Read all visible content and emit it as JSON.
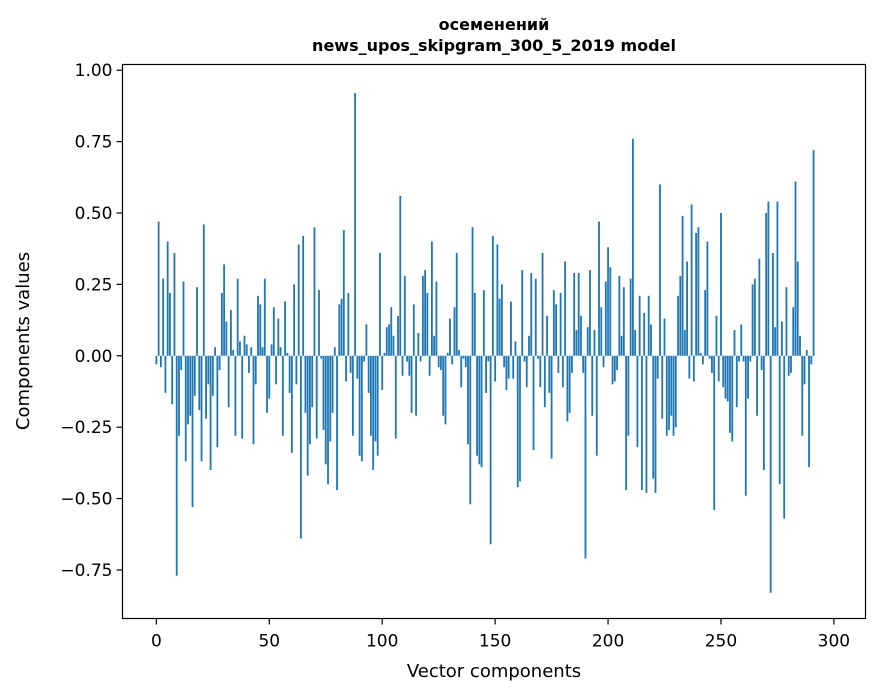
{
  "chart_data": {
    "type": "bar",
    "title": "осеменений",
    "subtitle": "news_upos_skipgram_300_5_2019 model",
    "xlabel": "Vector components",
    "ylabel": "Components values",
    "xlim": [
      -15,
      314
    ],
    "ylim": [
      -0.92,
      1.02
    ],
    "xticks": [
      0,
      50,
      100,
      150,
      200,
      250,
      300
    ],
    "yticks": [
      -0.75,
      -0.5,
      -0.25,
      0.0,
      0.25,
      0.5,
      0.75,
      1.0
    ],
    "ytick_labels": [
      "−0.75",
      "−0.50",
      "−0.25",
      "0.00",
      "0.25",
      "0.50",
      "0.75",
      "1.00"
    ],
    "bar_color": "#1f77b4",
    "grid": false,
    "values": [
      -0.03,
      0.47,
      -0.04,
      0.27,
      -0.13,
      0.4,
      0.22,
      -0.17,
      0.36,
      -0.77,
      -0.28,
      -0.05,
      0.26,
      -0.37,
      -0.24,
      -0.21,
      -0.53,
      -0.14,
      0.24,
      -0.19,
      -0.37,
      0.46,
      -0.22,
      -0.1,
      -0.4,
      -0.14,
      0.03,
      -0.32,
      -0.05,
      0.22,
      0.32,
      0.12,
      -0.18,
      0.16,
      0.02,
      -0.28,
      0.27,
      0.05,
      -0.29,
      0.07,
      0.04,
      -0.06,
      0.03,
      -0.31,
      -0.1,
      0.21,
      0.18,
      0.03,
      0.27,
      -0.2,
      -0.15,
      0.04,
      0.17,
      -0.1,
      0.13,
      0.03,
      -0.28,
      0.19,
      0.01,
      -0.13,
      -0.34,
      0.25,
      -0.1,
      0.39,
      -0.64,
      0.42,
      -0.2,
      -0.42,
      -0.31,
      -0.18,
      0.45,
      -0.29,
      0.23,
      -0.01,
      -0.26,
      -0.38,
      -0.45,
      -0.3,
      -0.2,
      0.03,
      -0.47,
      0.18,
      0.2,
      0.44,
      -0.09,
      0.22,
      -0.06,
      -0.28,
      0.92,
      -0.08,
      -0.35,
      -0.37,
      -0.02,
      0.11,
      -0.13,
      -0.28,
      -0.4,
      -0.3,
      -0.35,
      0.36,
      -0.12,
      0.01,
      0.1,
      0.11,
      0.17,
      0.07,
      -0.29,
      0.14,
      0.56,
      -0.07,
      0.28,
      -0.02,
      -0.07,
      -0.2,
      0.18,
      -0.21,
      0.08,
      -0.02,
      0.28,
      0.3,
      0.22,
      -0.07,
      0.4,
      0.07,
      0.26,
      -0.04,
      -0.05,
      -0.21,
      -0.24,
      0.01,
      0.13,
      -0.03,
      0.17,
      0.36,
      0.02,
      -0.11,
      -0.01,
      -0.04,
      -0.31,
      -0.52,
      0.45,
      0.22,
      -0.35,
      -0.38,
      -0.39,
      0.23,
      -0.13,
      -0.02,
      -0.66,
      0.42,
      -0.09,
      0.39,
      0.2,
      0.25,
      -0.04,
      -0.12,
      -0.08,
      0.19,
      -0.08,
      0.05,
      -0.46,
      -0.44,
      0.3,
      -0.02,
      -0.11,
      0.07,
      0.29,
      -0.33,
      0.27,
      -0.01,
      -0.11,
      0.36,
      -0.18,
      0.14,
      -0.13,
      -0.36,
      0.23,
      0.18,
      -0.06,
      0.22,
      -0.11,
      0.33,
      -0.23,
      -0.2,
      -0.06,
      0.29,
      0.09,
      0.29,
      0.14,
      -0.06,
      -0.71,
      0.1,
      0.3,
      -0.21,
      0.09,
      -0.35,
      0.47,
      0.17,
      -0.04,
      0.26,
      0.38,
      0.31,
      -0.1,
      -0.09,
      -0.05,
      0.28,
      0.07,
      0.24,
      -0.47,
      -0.28,
      0.27,
      0.76,
      0.09,
      -0.32,
      0.21,
      -0.47,
      0.15,
      -0.48,
      0.21,
      0.11,
      -0.43,
      -0.48,
      -0.08,
      0.6,
      -0.22,
      0.13,
      -0.28,
      -0.26,
      -0.21,
      -0.28,
      -0.25,
      0.21,
      0.28,
      0.49,
      0.09,
      0.33,
      -0.08,
      0.53,
      -0.09,
      0.43,
      0.45,
      0.01,
      -0.03,
      0.23,
      0.4,
      -0.01,
      -0.06,
      -0.54,
      0.14,
      -0.09,
      0.5,
      -0.11,
      -0.15,
      -0.16,
      -0.27,
      -0.3,
      0.09,
      -0.18,
      -0.02,
      0.11,
      -0.02,
      -0.49,
      -0.15,
      -0.02,
      0.25,
      0.27,
      -0.21,
      0.34,
      -0.05,
      -0.4,
      0.5,
      0.54,
      -0.83,
      0.36,
      0.1,
      0.54,
      -0.45,
      0.12,
      -0.57,
      0.24,
      -0.07,
      -0.06,
      0.17,
      0.61,
      0.33,
      0.07,
      -0.28,
      -0.1,
      0.02,
      -0.39,
      -0.03,
      0.72
    ]
  }
}
